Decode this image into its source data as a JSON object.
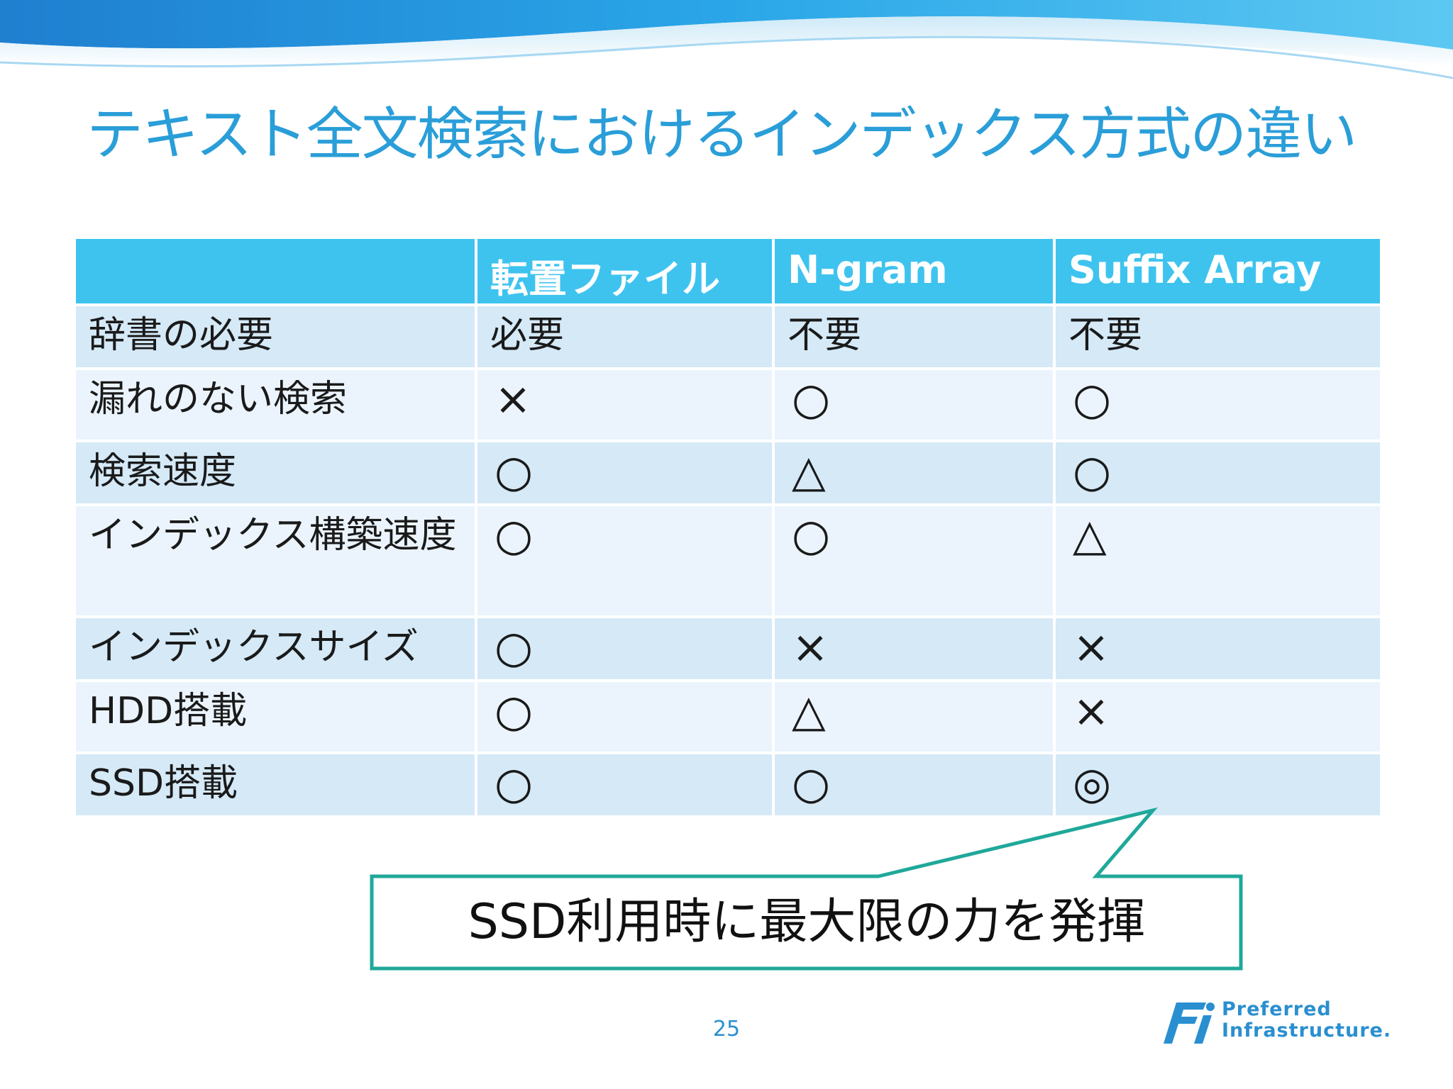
{
  "slide": {
    "title": "テキスト全文検索におけるインデックス方式の違い",
    "page_number": "25",
    "callout_text": "SSD利用時に最大限の力を発揮"
  },
  "table": {
    "headers": [
      "",
      "転置ファイル",
      "N-gram",
      "Suffix Array"
    ],
    "rows": [
      {
        "label": "辞書の必要",
        "values": [
          "必要",
          "不要",
          "不要"
        ]
      },
      {
        "label": "漏れのない検索",
        "values": [
          "×",
          "○",
          "○"
        ]
      },
      {
        "label": "検索速度",
        "values": [
          "○",
          "△",
          "○"
        ]
      },
      {
        "label": "インデックス構築速度",
        "values": [
          "○",
          "○",
          "△"
        ]
      },
      {
        "label": "インデックスサイズ",
        "values": [
          "○",
          "×",
          "×"
        ]
      },
      {
        "label": "HDD搭載",
        "values": [
          "○",
          "△",
          "×"
        ]
      },
      {
        "label": "SSD搭載",
        "values": [
          "○",
          "○",
          "◎"
        ]
      }
    ]
  },
  "logo": {
    "line1": "Preferred",
    "line2": "Infrastructure."
  },
  "colors": {
    "title": "#2a9ed8",
    "header_bg": "#3ec3ef",
    "row_dark": "#d5e9f7",
    "row_light": "#ebf4fc",
    "callout_border": "#1fa89a",
    "brand": "#2a8fd0"
  }
}
